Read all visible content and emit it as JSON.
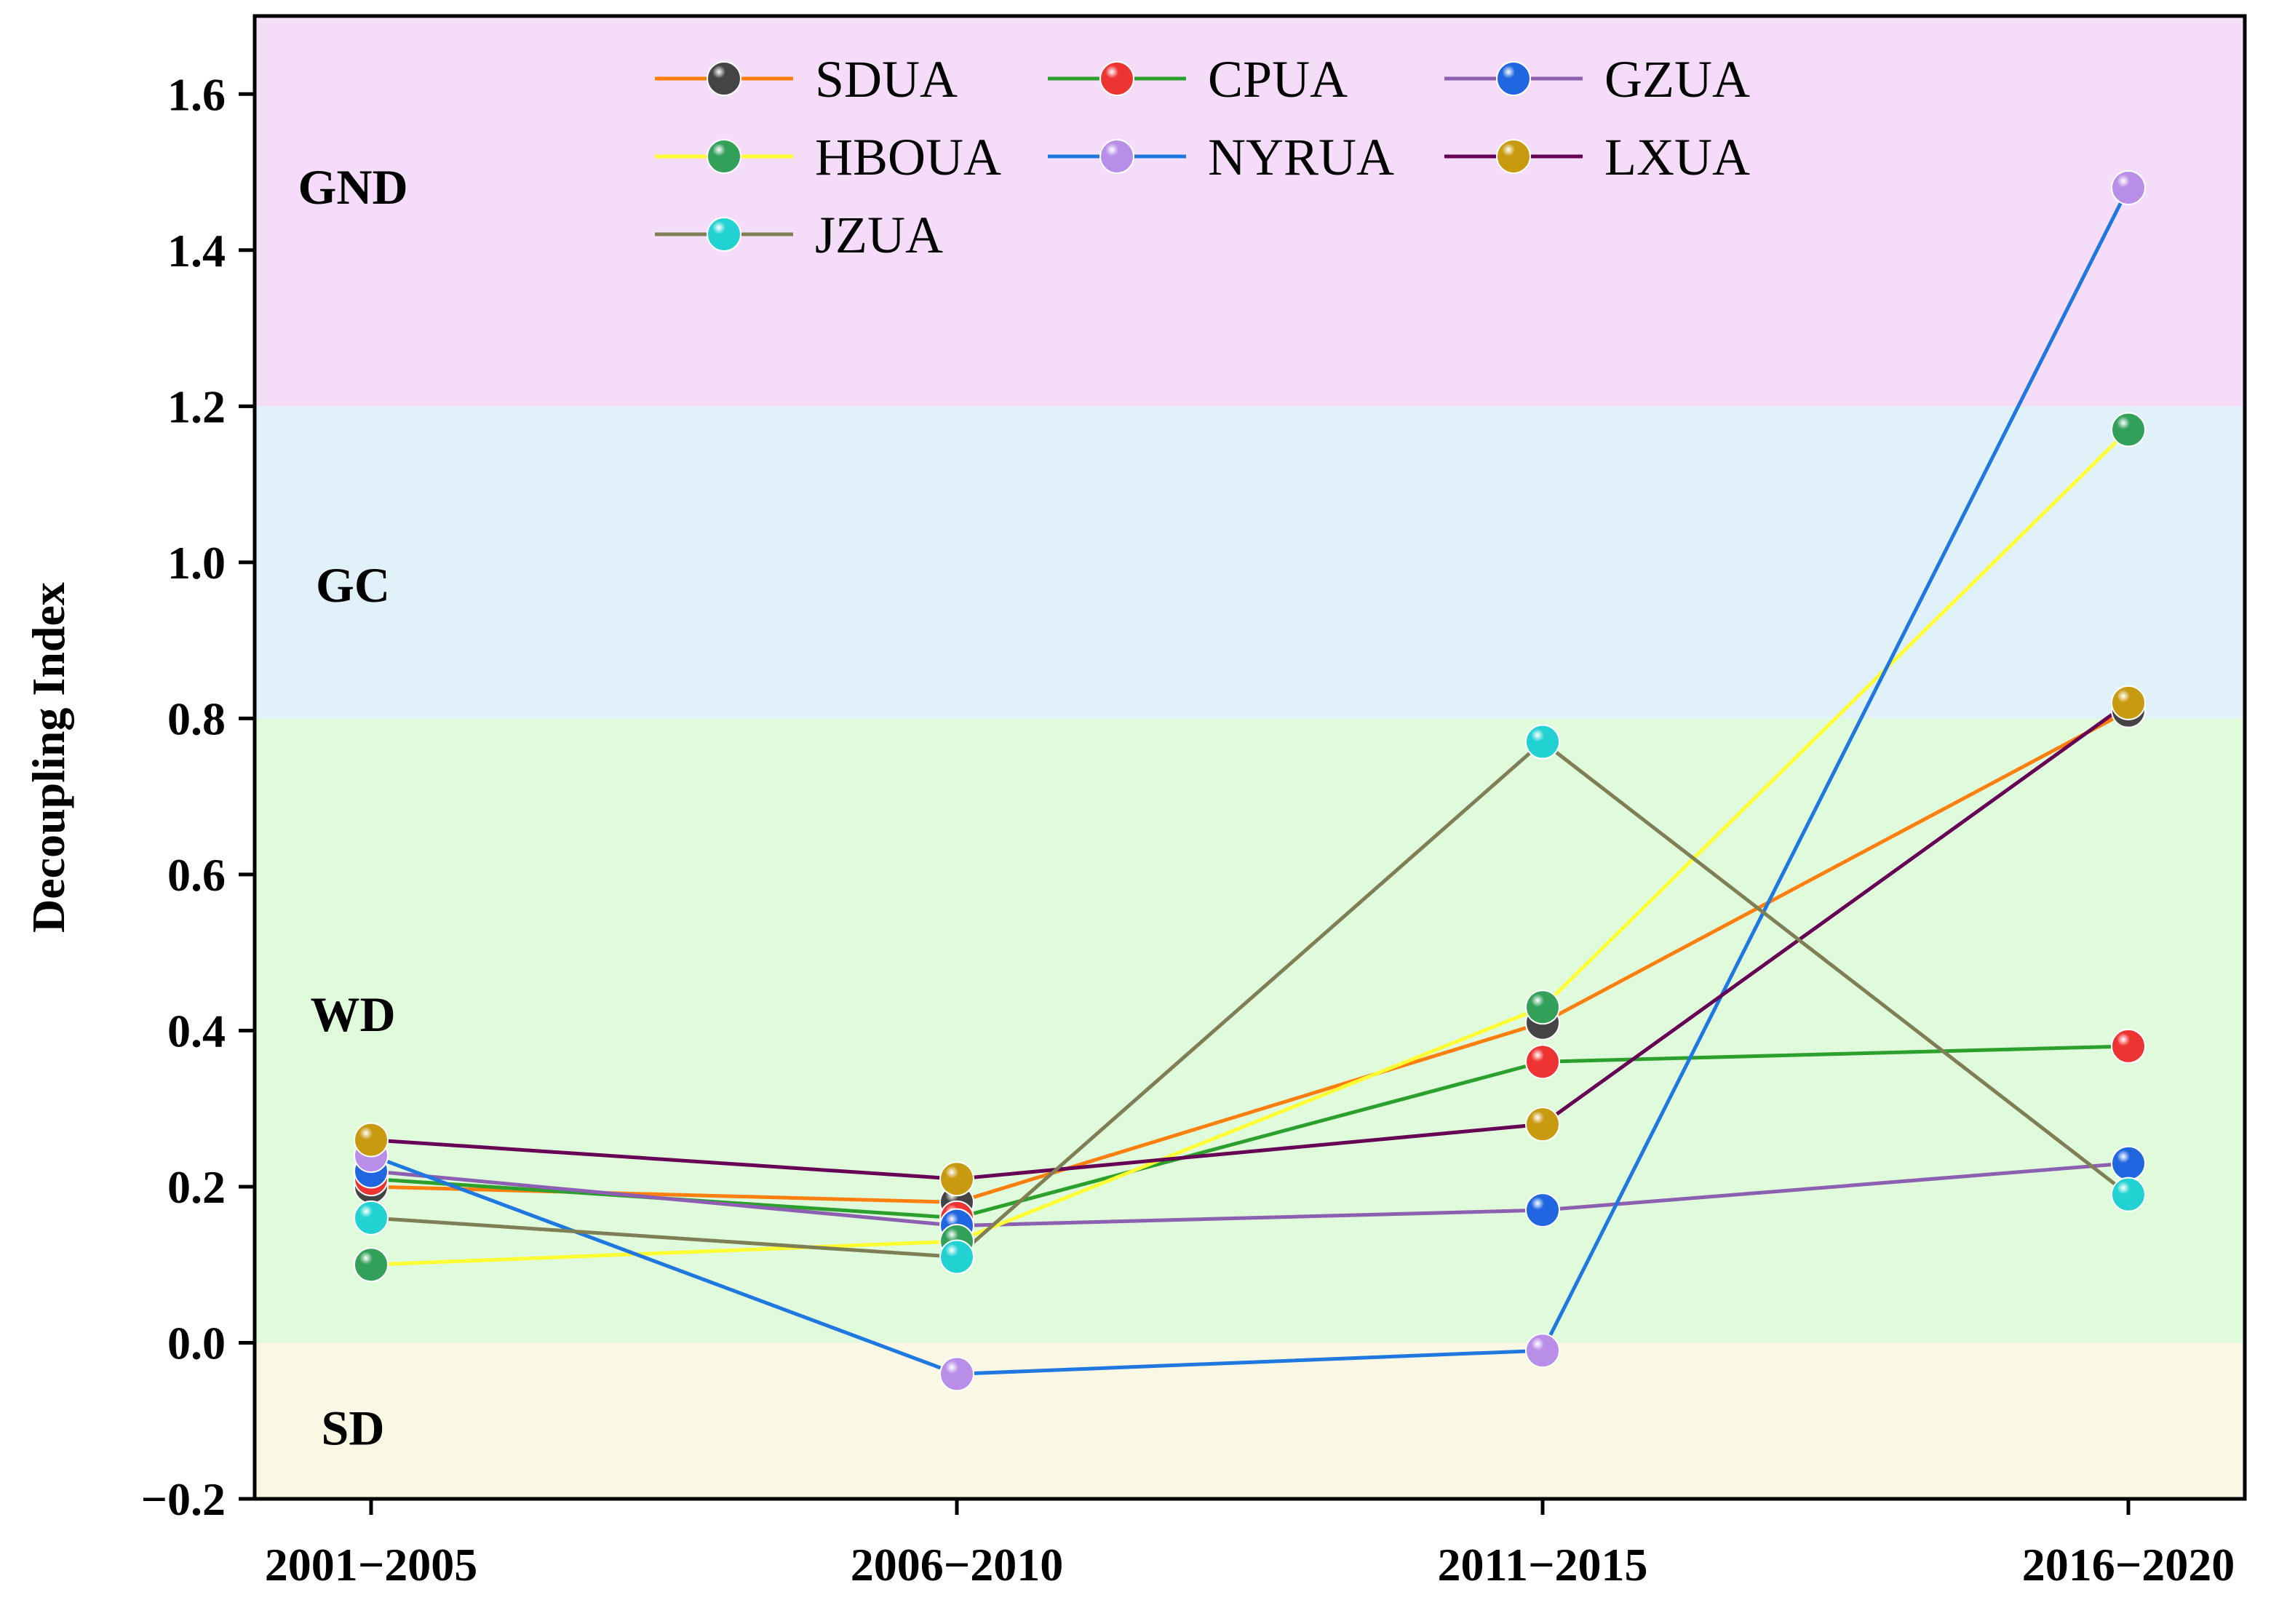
{
  "chart_data": {
    "type": "line",
    "title": "",
    "xlabel": "",
    "ylabel": "Decoupling Index",
    "categories": [
      "2001−2005",
      "2006−2010",
      "2011−2015",
      "2016−2020"
    ],
    "ylim": [
      -0.2,
      1.7
    ],
    "yticks": [
      -0.2,
      0.0,
      0.2,
      0.4,
      0.6,
      0.8,
      1.0,
      1.2,
      1.4,
      1.6
    ],
    "ytick_labels": [
      "−0.2",
      "0.0",
      "0.2",
      "0.4",
      "0.6",
      "0.8",
      "1.0",
      "1.2",
      "1.4",
      "1.6"
    ],
    "legend_position": "top",
    "regions": [
      {
        "label": "SD",
        "from": -0.2,
        "to": 0.0,
        "color": "#faf8e4",
        "label_value": -0.11
      },
      {
        "label": "WD",
        "from": 0.0,
        "to": 0.8,
        "color": "#e0fadc",
        "label_value": 0.42
      },
      {
        "label": "GC",
        "from": 0.8,
        "to": 1.2,
        "color": "#e0f1fa",
        "label_value": 0.97
      },
      {
        "label": "GND",
        "from": 1.2,
        "to": 1.7,
        "color": "#f5ddfa",
        "label_value": 1.48
      }
    ],
    "series": [
      {
        "name": "SDUA",
        "line_color": "#ff7f0e",
        "marker_color": "#444444",
        "values": [
          0.2,
          0.18,
          0.41,
          0.81
        ]
      },
      {
        "name": "CPUA",
        "line_color": "#2ca02c",
        "marker_color": "#ee3333",
        "values": [
          0.21,
          0.16,
          0.36,
          0.38
        ]
      },
      {
        "name": "GZUA",
        "line_color": "#8c5fb0",
        "marker_color": "#1f66e0",
        "values": [
          0.22,
          0.15,
          0.17,
          0.23
        ]
      },
      {
        "name": "HBOUA",
        "line_color": "#ffff33",
        "marker_color": "#33a05a",
        "values": [
          0.1,
          0.13,
          0.43,
          1.17
        ]
      },
      {
        "name": "NYRUA",
        "line_color": "#1f77e0",
        "marker_color": "#b98ee8",
        "values": [
          0.24,
          -0.04,
          -0.01,
          1.48
        ]
      },
      {
        "name": "LXUA",
        "line_color": "#660055",
        "marker_color": "#c89a10",
        "values": [
          0.26,
          0.21,
          0.28,
          0.82
        ]
      },
      {
        "name": "JZUA",
        "line_color": "#7f7f55",
        "marker_color": "#22d2d2",
        "values": [
          0.16,
          0.11,
          0.77,
          0.19
        ]
      }
    ]
  }
}
